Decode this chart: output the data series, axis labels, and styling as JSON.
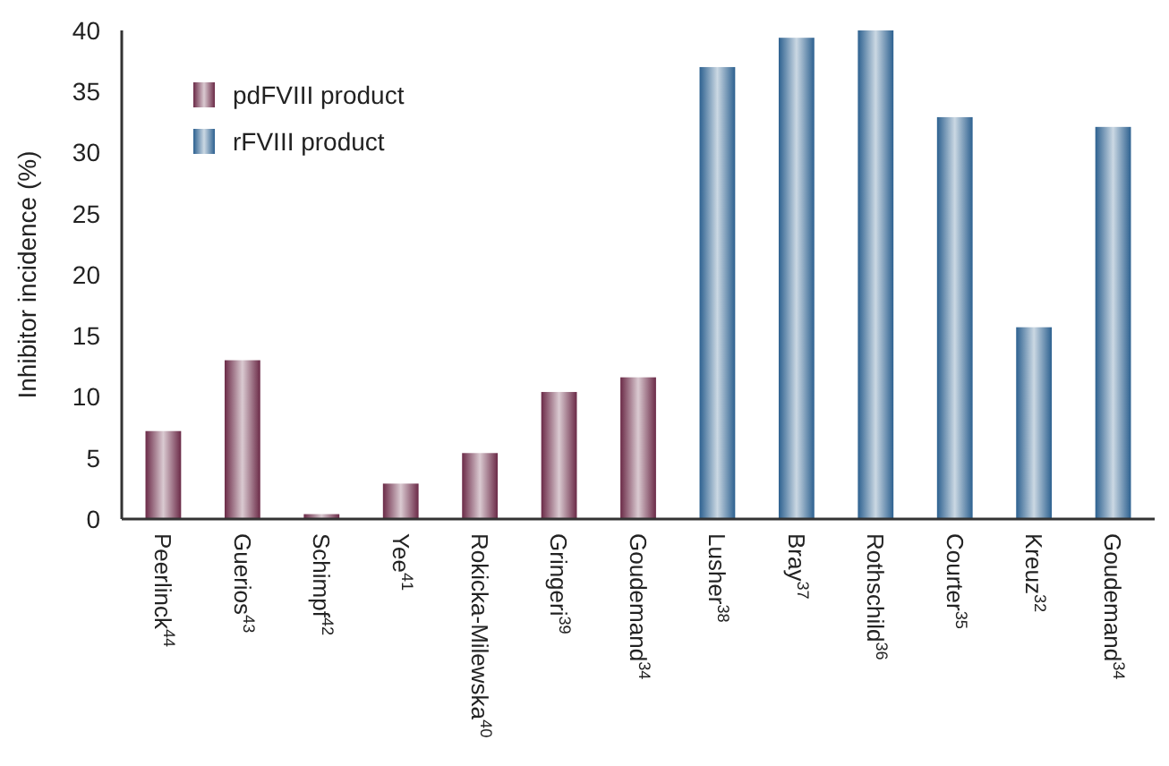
{
  "chart_data": {
    "type": "bar",
    "ylabel": "Inhibitor incidence (%)",
    "categories": [
      "Peerlinck$^{44}$",
      "Guerios$^{43}$",
      "Schimpf$^{42}$",
      "Yee$^{41}$",
      "Rokicka-Milewska$^{40}$",
      "Gringeri$^{39}$",
      "Goudemand$^{34}$",
      "Lusher$^{38}$",
      "Bray$^{37}$",
      "Rothschild$^{36}$",
      "Courter$^{35}$",
      "Kreuz$^{32}$",
      "Goudemand$^{34}$"
    ],
    "series": [
      {
        "name": "pdFVIII product",
        "color": "#6b2a47",
        "values": [
          7.2,
          13.0,
          0.4,
          2.9,
          5.4,
          10.4,
          11.6,
          null,
          null,
          null,
          null,
          null,
          null
        ]
      },
      {
        "name": "rFVIII product",
        "color": "#2d6190",
        "values": [
          null,
          null,
          null,
          null,
          null,
          null,
          null,
          37.0,
          39.4,
          40.0,
          32.9,
          15.7,
          32.1
        ]
      }
    ],
    "ylim": [
      0,
      40
    ],
    "yticks": [
      0,
      5,
      10,
      15,
      20,
      25,
      30,
      35,
      40
    ],
    "grid": false,
    "legend": "top left"
  }
}
